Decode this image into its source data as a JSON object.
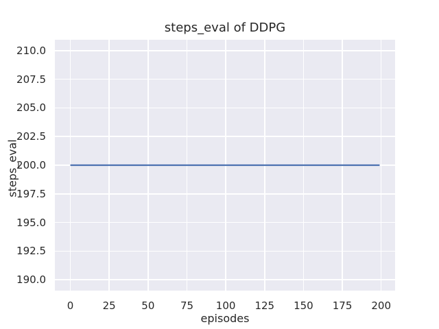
{
  "chart_data": {
    "type": "line",
    "title": "steps_eval of DDPG",
    "xlabel": "episodes",
    "ylabel": "steps_eval",
    "x_tick_values": [
      0,
      25,
      50,
      75,
      100,
      125,
      150,
      175,
      200
    ],
    "x_tick_labels": [
      "0",
      "25",
      "50",
      "75",
      "100",
      "125",
      "150",
      "175",
      "200"
    ],
    "y_tick_values": [
      210.0,
      207.5,
      205.0,
      202.5,
      200.0,
      197.5,
      195.0,
      192.5,
      190.0
    ],
    "y_tick_labels": [
      "210.0",
      "207.5",
      "205.0",
      "202.5",
      "200.0",
      "197.5",
      "195.0",
      "192.5",
      "190.0"
    ],
    "xlim": [
      -9.95,
      208.95
    ],
    "ylim": [
      189.05,
      210.95
    ],
    "grid": true,
    "legend_position": "none",
    "series": [
      {
        "name": "steps_eval",
        "color": "#4c72b0",
        "x": [
          0,
          199
        ],
        "y": [
          200,
          200
        ]
      }
    ],
    "colors": {
      "figure_background": "#ffffff",
      "axes_background": "#eaeaf2",
      "gridline": "#ffffff",
      "text": "#262626"
    }
  }
}
